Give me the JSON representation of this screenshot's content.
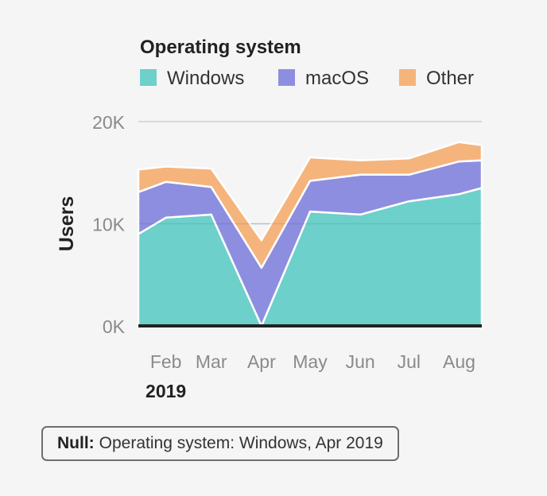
{
  "legend": {
    "title": "Operating system",
    "items": [
      {
        "label": "Windows",
        "color": "#6dd0cb"
      },
      {
        "label": "macOS",
        "color": "#8e8ee0"
      },
      {
        "label": "Other",
        "color": "#f5b47c"
      }
    ]
  },
  "tooltip": {
    "key": "Null:",
    "value": "Operating system: Windows, Apr 2019"
  },
  "chart_data": {
    "type": "area",
    "stacked": true,
    "x": [
      "2019-01-15",
      "2019-02-01",
      "2019-03-01",
      "2019-04-01",
      "2019-05-01",
      "2019-06-01",
      "2019-07-01",
      "2019-08-01",
      "2019-08-15"
    ],
    "x_tick_labels": [
      "Feb",
      "Mar",
      "Apr",
      "May",
      "Jun",
      "Jul",
      "Aug"
    ],
    "x_year_label": "2019",
    "ylabel": "Users",
    "ylim": [
      0,
      20000
    ],
    "y_ticks": [
      0,
      10000,
      20000
    ],
    "y_tick_labels": [
      "0K",
      "10K",
      "20K"
    ],
    "grid": true,
    "legend_position": "top-left",
    "series": [
      {
        "name": "Windows",
        "color": "#6dd0cb",
        "values": [
          9000,
          10600,
          10900,
          0,
          11200,
          10900,
          12200,
          12900,
          13500
        ]
      },
      {
        "name": "macOS",
        "color": "#8e8ee0",
        "values": [
          4100,
          3500,
          2700,
          5700,
          3000,
          3900,
          2600,
          3200,
          2700
        ]
      },
      {
        "name": "Other",
        "color": "#f5b47c",
        "values": [
          2200,
          1500,
          1800,
          2700,
          2300,
          1400,
          1600,
          1900,
          1500
        ]
      }
    ]
  }
}
